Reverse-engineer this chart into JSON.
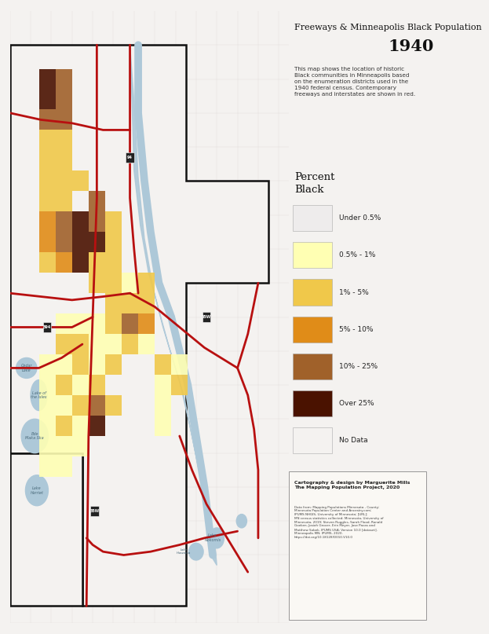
{
  "title_line1": "Freeways & Minneapolis Black Population",
  "title_year": "1940",
  "subtitle": "This map shows the location of historic\nBlack communities in Minneapolis based\non the enumeration districts used in the\n1940 federal census. Contemporary\nfreeways and interstates are shown in red.",
  "legend_title": "Percent\nBlack",
  "legend_items": [
    {
      "label": "Under 0.5%",
      "color": "#eeecec"
    },
    {
      "label": "0.5% - 1%",
      "color": "#ffffb3"
    },
    {
      "label": "1% - 5%",
      "color": "#f0c84a"
    },
    {
      "label": "5% - 10%",
      "color": "#e08c18"
    },
    {
      "label": "10% - 25%",
      "color": "#a0612a"
    },
    {
      "label": "Over 25%",
      "color": "#4a1200"
    },
    {
      "label": "No Data",
      "color": "#f4f2f0"
    }
  ],
  "bg_color": "#f4f2f0",
  "map_bg": "#eceae6",
  "map_inner_bg": "#f4f2f0",
  "water_color": "#adc8d8",
  "freeway_color": "#b81010",
  "grid_color": "#dddad4",
  "border_color": "#111111",
  "caption": "Cartography & design by Marguerite Mills\nThe Mapping Population Project, 2020",
  "sources_note": "Data from: Mapping Populations Minnesota - County;\nMinnesota Population Center and Ancestry.com;\nIPUMS NHGIS, University of Minnesota; [URL];\nMN census statistics collected: Minnesota, University of\nMinnesota, 2019; Steven Ruggles, Sarah Flood, Ronald\nGoeken, Josiah Grover, Erin Meyer, Jose Pacas and\nMatthew Sobek. IPUMS USA: Version 10.0 [dataset].\nMinneapolis MN: IPUMS, 2020.\nhttps://doi.org/10.18128/D010.V10.0"
}
